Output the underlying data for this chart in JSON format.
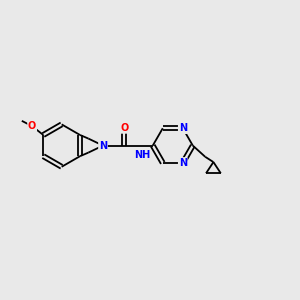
{
  "background_color": "#e9e9e9",
  "bond_color": "#000000",
  "atom_colors": {
    "N": "#0000ff",
    "O": "#ff0000",
    "C": "#000000",
    "H": "#008080"
  },
  "figsize": [
    3.0,
    3.0
  ],
  "dpi": 100,
  "bond_lw": 1.3,
  "double_sep": 0.07,
  "font_size": 7.0
}
